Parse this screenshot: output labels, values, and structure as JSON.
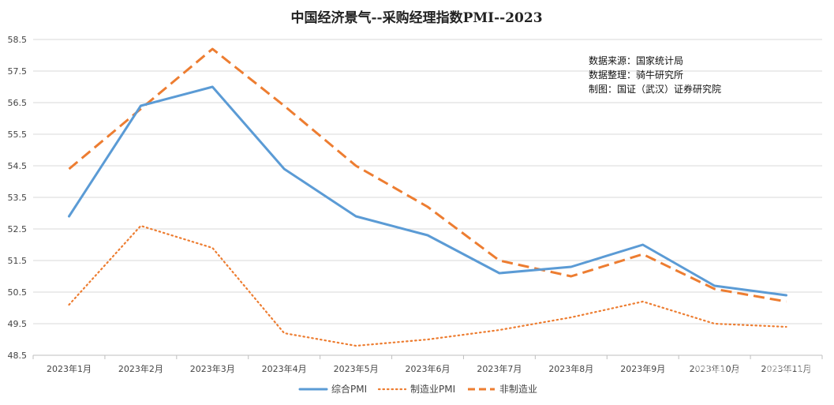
{
  "chart_data": {
    "type": "line",
    "title": "中国经济景气--采购经理指数PMI--2023",
    "categories": [
      "2023年1月",
      "2023年2月",
      "2023年3月",
      "2023年4月",
      "2023年5月",
      "2023年6月",
      "2023年7月",
      "2023年8月",
      "2023年9月",
      "2023年10月",
      "2023年11月"
    ],
    "visible_x_labels": [
      "2023年1月",
      "2023年2月",
      "2023年3月",
      "2023年4月",
      "2023年5月",
      "2023年6月",
      "2023年7月",
      "2023年8月",
      "2023年9月",
      "2023年10月",
      "2023年11月"
    ],
    "yticks": [
      "48.5",
      "49.5",
      "50.5",
      "51.5",
      "52.5",
      "53.5",
      "54.5",
      "55.5",
      "56.5",
      "57.5",
      "58.5"
    ],
    "ylim": [
      48.5,
      58.5
    ],
    "grid": true,
    "legend_position": "bottom",
    "series": [
      {
        "name": "综合PMI",
        "style": "solid",
        "color": "#5b9bd5",
        "values": [
          52.9,
          56.4,
          57.0,
          54.4,
          52.9,
          52.3,
          51.1,
          51.3,
          52.0,
          50.7,
          50.4
        ]
      },
      {
        "name": "制造业PMI",
        "style": "dotted",
        "color": "#ed7d31",
        "values": [
          50.1,
          52.6,
          51.9,
          49.2,
          48.8,
          49.0,
          49.3,
          49.7,
          50.2,
          49.5,
          49.4
        ]
      },
      {
        "name": "非制造业",
        "style": "dashed",
        "color": "#ed7d31",
        "values": [
          54.4,
          56.3,
          58.2,
          56.4,
          54.5,
          53.2,
          51.5,
          51.0,
          51.7,
          50.6,
          50.2
        ]
      }
    ],
    "annotations": [
      "数据来源：国家统计局",
      "数据整理：骑牛研究所",
      "制图：国证（武汉）证券研究院"
    ]
  },
  "watermark": "知乎 @大星宏观"
}
